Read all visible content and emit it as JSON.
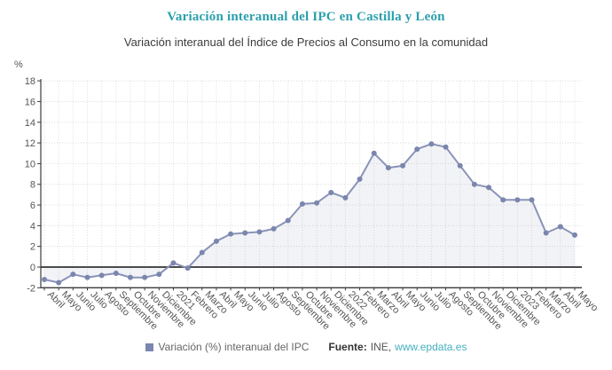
{
  "header": {
    "title": "Variación interanual del IPC en Castilla y León",
    "subtitle": "Variación interanual del Índice de Precios al Consumo en la comunidad"
  },
  "chart_data": {
    "type": "line",
    "title": "Variación interanual del IPC en Castilla y León",
    "ylabel": "%",
    "xlabel": "",
    "ylim": [
      -2,
      18
    ],
    "ytick_step": 2,
    "grid": true,
    "grid_style": "dotted",
    "legend_position": "bottom",
    "categories": [
      "Abril",
      "Mayo",
      "Junio",
      "Julio",
      "Agosto",
      "Septiembre",
      "Octubre",
      "Noviembre",
      "Diciembre",
      "2021",
      "Febrero",
      "Marzo",
      "Abril",
      "Mayo",
      "Junio",
      "Julio",
      "Agosto",
      "Septiembre",
      "Octubre",
      "Noviembre",
      "Diciembre",
      "2022",
      "Febrero",
      "Marzo",
      "Abril",
      "Mayo",
      "Junio",
      "Julio",
      "Agosto",
      "Septiembre",
      "Octubre",
      "Noviembre",
      "Diciembre",
      "2023",
      "Febrero",
      "Marzo",
      "Abril",
      "Mayo"
    ],
    "series": [
      {
        "name": "Variación (%) interanual del IPC",
        "values": [
          -1.2,
          -1.5,
          -0.7,
          -1.0,
          -0.8,
          -0.6,
          -1.0,
          -1.0,
          -0.7,
          0.4,
          -0.1,
          1.4,
          2.5,
          3.2,
          3.3,
          3.4,
          3.7,
          4.5,
          6.1,
          6.2,
          7.2,
          6.7,
          8.5,
          11.0,
          9.6,
          9.8,
          11.4,
          11.9,
          11.6,
          9.8,
          8.0,
          7.7,
          6.5,
          6.5,
          6.5,
          3.3,
          3.9,
          3.1
        ]
      }
    ]
  },
  "legend": {
    "series_label": "Variación (%) interanual del IPC"
  },
  "footer": {
    "source_label": "Fuente:",
    "source_name": "INE,",
    "source_link": "www.epdata.es"
  },
  "colors": {
    "accent_teal": "#2ba0ac",
    "link_teal": "#45b0c0",
    "line": "#8a93b8",
    "marker": "#7b86ae",
    "area_fill": "#7d87aa",
    "zero_line": "#333333",
    "axis": "#3a3a3a",
    "grid": "#dcdcdc",
    "axis_text": "#555555",
    "subtitle_text": "#3c3c3c"
  }
}
